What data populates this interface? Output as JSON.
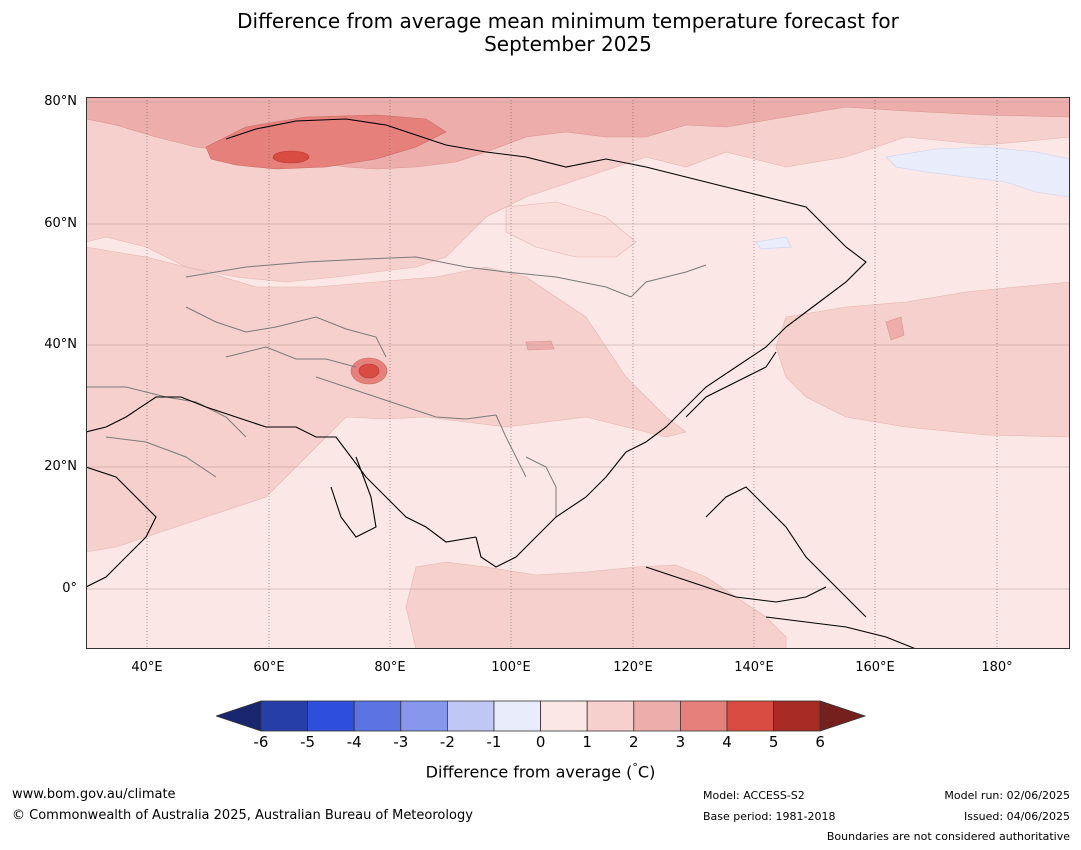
{
  "title_line1": "Difference from average mean minimum temperature forecast for",
  "title_line2": "September 2025",
  "lat_labels": [
    "80°N",
    "60°N",
    "40°N",
    "20°N",
    "0°"
  ],
  "lon_labels": [
    "40°E",
    "60°E",
    "80°E",
    "100°E",
    "120°E",
    "140°E",
    "160°E",
    "180°"
  ],
  "colorbar": {
    "ticks": [
      "-6",
      "-5",
      "-4",
      "-3",
      "-2",
      "-1",
      "0",
      "1",
      "2",
      "3",
      "4",
      "5",
      "6"
    ],
    "colors": [
      "#19256e",
      "#263ea8",
      "#2e4edc",
      "#5b73e3",
      "#8797eb",
      "#bfc8f4",
      "#e8ecfb",
      "#fbe8e6",
      "#f5d0cc",
      "#edadaa",
      "#e5807b",
      "#d84c41",
      "#a82c25",
      "#74201c"
    ],
    "label": "Difference from average (",
    "label_unit": "°",
    "label_end": "C)"
  },
  "footer": {
    "website": "www.bom.gov.au/climate",
    "copyright": "© Commonwealth of Australia 2025, Australian Bureau of Meteorology",
    "model": "Model: ACCESS-S2",
    "base_period": "Base period: 1981-2018",
    "model_run": "Model run: 02/06/2025",
    "issued": "Issued: 04/06/2025",
    "disclaimer": "Boundaries are not considered authoritative"
  }
}
